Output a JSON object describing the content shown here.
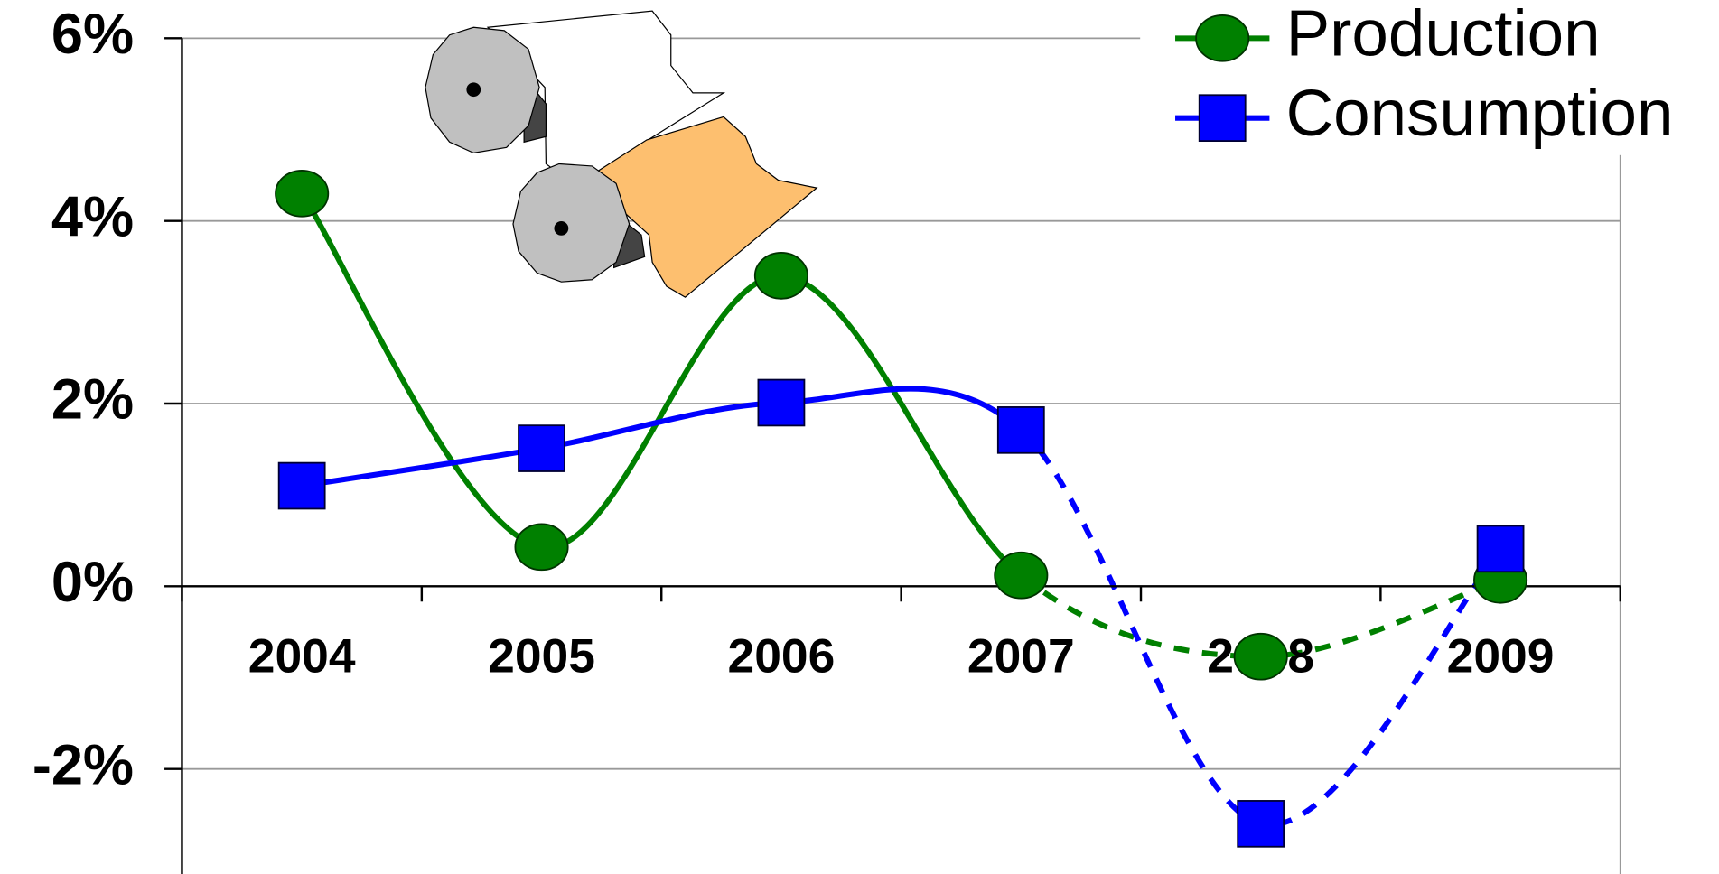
{
  "chart_data": {
    "type": "line",
    "categories": [
      "2004",
      "2005",
      "2006",
      "2007",
      "2008",
      "2009"
    ],
    "series": [
      {
        "name": "Production",
        "color": "#008000",
        "marker": "circle",
        "values": [
          4.3,
          0.43,
          3.4,
          0.12,
          -0.77,
          0.07
        ]
      },
      {
        "name": "Consumption",
        "color": "#0000ff",
        "marker": "square",
        "values": [
          1.1,
          1.51,
          2.01,
          1.71,
          -2.6,
          0.41
        ]
      }
    ],
    "ylim": [
      -3.15,
      6
    ],
    "yticks": [
      {
        "value": 6,
        "label": "6%"
      },
      {
        "value": 4,
        "label": "4%"
      },
      {
        "value": 2,
        "label": "2%"
      },
      {
        "value": 0,
        "label": "0%"
      },
      {
        "value": -2,
        "label": "-2%"
      }
    ],
    "grid": true,
    "smooth": true,
    "dashed_from": 3,
    "legend": "top-right"
  }
}
